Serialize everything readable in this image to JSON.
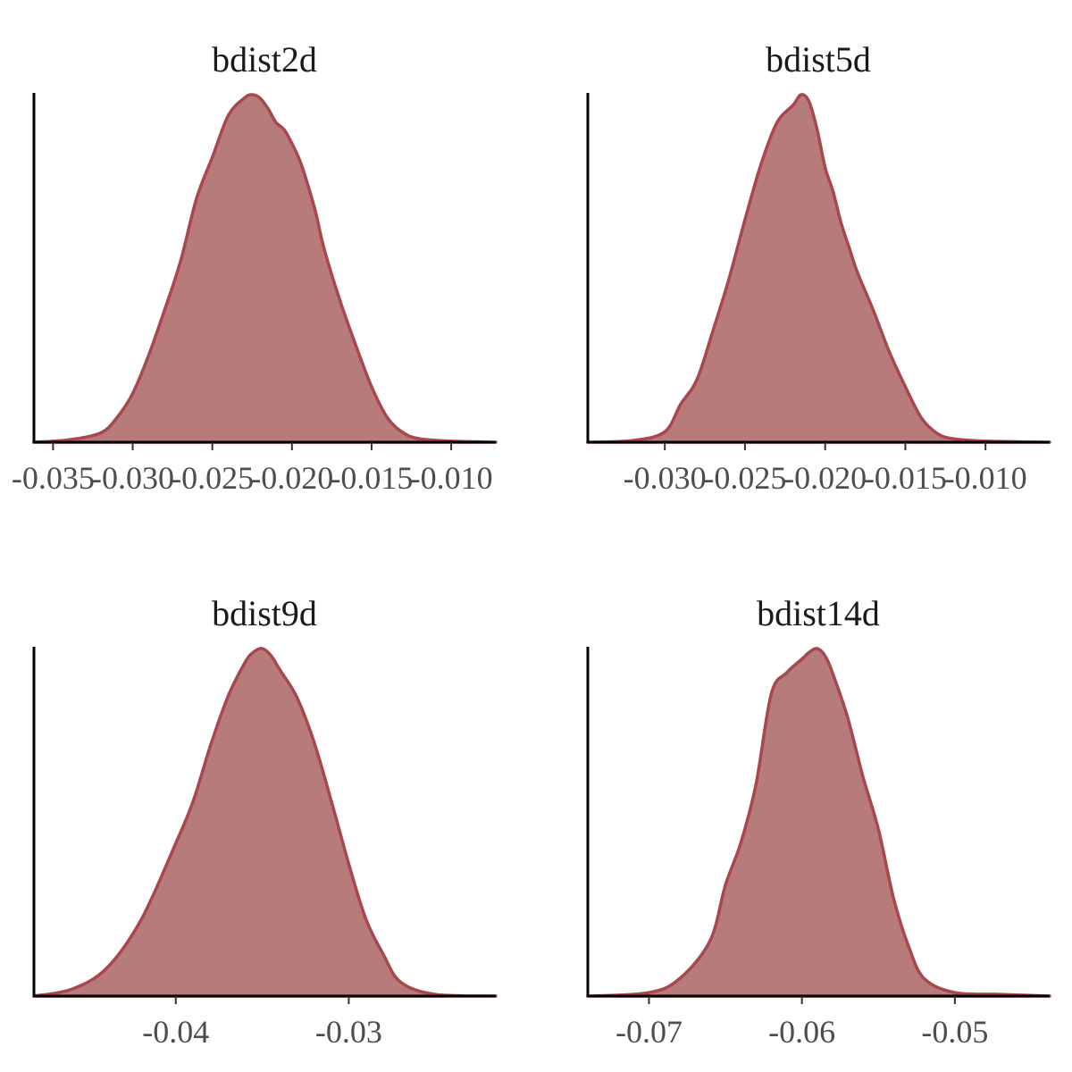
{
  "colors": {
    "fill": "#b77b7b",
    "outline": "#a8484e",
    "axis": "#000000",
    "tick_text": "#4d4d4d"
  },
  "chart_data": [
    {
      "type": "area",
      "title": "bdist2d",
      "xlabel": "",
      "ylabel": "",
      "xlim": [
        -0.0362,
        -0.0072
      ],
      "xticks": [
        -0.035,
        -0.03,
        -0.025,
        -0.02,
        -0.015,
        -0.01
      ],
      "xtick_labels": [
        "-0.035",
        "-0.030",
        "-0.025",
        "-0.020",
        "-0.015",
        "-0.010"
      ],
      "y_axis_ticks_shown": false,
      "x": [
        -0.0362,
        -0.034,
        -0.032,
        -0.031,
        -0.03,
        -0.029,
        -0.028,
        -0.027,
        -0.026,
        -0.025,
        -0.024,
        -0.023,
        -0.0225,
        -0.022,
        -0.0215,
        -0.021,
        -0.0205,
        -0.02,
        -0.0195,
        -0.019,
        -0.0185,
        -0.018,
        -0.017,
        -0.016,
        -0.015,
        -0.014,
        -0.013,
        -0.012,
        -0.01,
        -0.0072
      ],
      "y": [
        0.0,
        0.007,
        0.027,
        0.07,
        0.14,
        0.25,
        0.38,
        0.52,
        0.7,
        0.82,
        0.94,
        0.99,
        1.0,
        0.99,
        0.96,
        0.92,
        0.9,
        0.86,
        0.81,
        0.74,
        0.66,
        0.56,
        0.41,
        0.28,
        0.16,
        0.07,
        0.027,
        0.01,
        0.003,
        0.0
      ]
    },
    {
      "type": "area",
      "title": "bdist5d",
      "xlabel": "",
      "ylabel": "",
      "xlim": [
        -0.0348,
        -0.006
      ],
      "xticks": [
        -0.03,
        -0.025,
        -0.02,
        -0.015,
        -0.01
      ],
      "xtick_labels": [
        "-0.030",
        "-0.025",
        "-0.020",
        "-0.015",
        "-0.010"
      ],
      "y_axis_ticks_shown": false,
      "x": [
        -0.0348,
        -0.032,
        -0.03,
        -0.029,
        -0.028,
        -0.027,
        -0.026,
        -0.025,
        -0.024,
        -0.023,
        -0.022,
        -0.0215,
        -0.021,
        -0.0205,
        -0.02,
        -0.0195,
        -0.019,
        -0.0185,
        -0.018,
        -0.017,
        -0.016,
        -0.015,
        -0.014,
        -0.013,
        -0.012,
        -0.01,
        -0.006
      ],
      "y": [
        0.0,
        0.005,
        0.03,
        0.11,
        0.18,
        0.32,
        0.47,
        0.64,
        0.8,
        0.92,
        0.97,
        1.0,
        0.98,
        0.9,
        0.79,
        0.72,
        0.63,
        0.56,
        0.49,
        0.38,
        0.26,
        0.16,
        0.07,
        0.025,
        0.01,
        0.003,
        0.0
      ]
    },
    {
      "type": "area",
      "title": "bdist9d",
      "xlabel": "",
      "ylabel": "",
      "xlim": [
        -0.0482,
        -0.0215
      ],
      "xticks": [
        -0.04,
        -0.03
      ],
      "xtick_labels": [
        "-0.04",
        "-0.03"
      ],
      "y_axis_ticks_shown": false,
      "x": [
        -0.0482,
        -0.046,
        -0.044,
        -0.042,
        -0.04,
        -0.039,
        -0.038,
        -0.037,
        -0.036,
        -0.0355,
        -0.035,
        -0.0345,
        -0.034,
        -0.033,
        -0.032,
        -0.031,
        -0.03,
        -0.029,
        -0.028,
        -0.027,
        -0.025,
        -0.0215
      ],
      "y": [
        0.0,
        0.02,
        0.08,
        0.22,
        0.44,
        0.56,
        0.72,
        0.86,
        0.96,
        0.99,
        1.0,
        0.98,
        0.94,
        0.86,
        0.73,
        0.56,
        0.38,
        0.22,
        0.12,
        0.04,
        0.005,
        0.0
      ]
    },
    {
      "type": "area",
      "title": "bdist14d",
      "xlabel": "",
      "ylabel": "",
      "xlim": [
        -0.074,
        -0.0438
      ],
      "xticks": [
        -0.07,
        -0.06,
        -0.05
      ],
      "xtick_labels": [
        "-0.07",
        "-0.06",
        "-0.05"
      ],
      "y_axis_ticks_shown": false,
      "x": [
        -0.074,
        -0.07,
        -0.068,
        -0.066,
        -0.065,
        -0.064,
        -0.063,
        -0.062,
        -0.061,
        -0.06,
        -0.0595,
        -0.059,
        -0.0585,
        -0.058,
        -0.057,
        -0.056,
        -0.055,
        -0.054,
        -0.053,
        -0.052,
        -0.05,
        -0.047,
        -0.0438
      ],
      "y": [
        0.0,
        0.01,
        0.05,
        0.16,
        0.32,
        0.44,
        0.61,
        0.87,
        0.93,
        0.97,
        0.99,
        1.0,
        0.98,
        0.93,
        0.8,
        0.63,
        0.48,
        0.28,
        0.14,
        0.05,
        0.01,
        0.005,
        0.0
      ]
    }
  ]
}
